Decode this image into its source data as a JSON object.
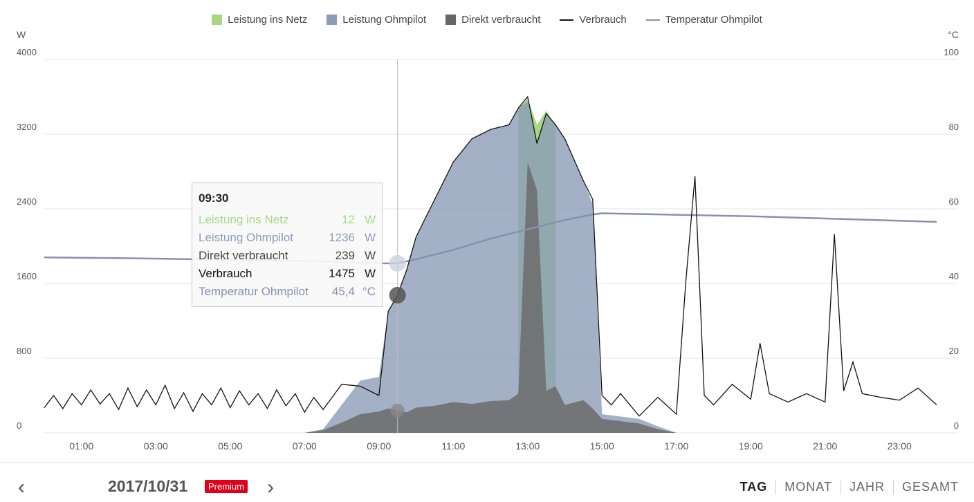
{
  "legend": [
    {
      "label": "Leistung ins Netz",
      "color": "#a6d785",
      "kind": "area"
    },
    {
      "label": "Leistung Ohmpilot",
      "color": "#8c9cb8",
      "kind": "area"
    },
    {
      "label": "Direkt verbraucht",
      "color": "#666666",
      "kind": "area"
    },
    {
      "label": "Verbrauch",
      "color": "#111111",
      "kind": "line"
    },
    {
      "label": "Temperatur Ohmpilot",
      "color": "#8890b0",
      "kind": "line"
    }
  ],
  "units": {
    "left": "W",
    "right": "°C"
  },
  "chart_data": {
    "type": "area",
    "yleft": {
      "label": "W",
      "ticks": [
        0,
        800,
        1600,
        2400,
        3200,
        4000
      ],
      "range": [
        0,
        4000
      ]
    },
    "yright": {
      "label": "°C",
      "ticks": [
        0,
        20,
        40,
        60,
        80,
        100
      ],
      "range": [
        0,
        100
      ]
    },
    "xrange": [
      0,
      24
    ],
    "xticks": [
      "01:00",
      "03:00",
      "05:00",
      "07:00",
      "09:00",
      "11:00",
      "13:00",
      "15:00",
      "17:00",
      "19:00",
      "21:00",
      "23:00"
    ],
    "grid": true,
    "legend_position": "top",
    "series": [
      {
        "name": "Direkt verbraucht",
        "unit": "W",
        "points": [
          [
            0,
            0
          ],
          [
            7,
            0
          ],
          [
            7.5,
            30
          ],
          [
            8,
            110
          ],
          [
            8.5,
            200
          ],
          [
            9,
            230
          ],
          [
            9.25,
            260
          ],
          [
            9.5,
            239
          ],
          [
            9.75,
            220
          ],
          [
            10,
            270
          ],
          [
            10.5,
            290
          ],
          [
            11,
            330
          ],
          [
            11.5,
            310
          ],
          [
            12,
            340
          ],
          [
            12.5,
            350
          ],
          [
            12.75,
            420
          ],
          [
            13,
            2900
          ],
          [
            13.25,
            2600
          ],
          [
            13.5,
            450
          ],
          [
            13.75,
            500
          ],
          [
            14,
            300
          ],
          [
            14.5,
            350
          ],
          [
            14.75,
            260
          ],
          [
            15,
            150
          ],
          [
            16,
            100
          ],
          [
            16.5,
            40
          ],
          [
            17,
            0
          ],
          [
            24,
            0
          ]
        ]
      },
      {
        "name": "Leistung Ohmpilot",
        "unit": "W",
        "points": [
          [
            0,
            0
          ],
          [
            7,
            0
          ],
          [
            7.5,
            40
          ],
          [
            8,
            300
          ],
          [
            8.5,
            560
          ],
          [
            9,
            600
          ],
          [
            9.25,
            1300
          ],
          [
            9.5,
            1475
          ],
          [
            9.75,
            1750
          ],
          [
            10,
            2100
          ],
          [
            10.5,
            2500
          ],
          [
            11,
            2900
          ],
          [
            11.5,
            3150
          ],
          [
            12,
            3250
          ],
          [
            12.5,
            3300
          ],
          [
            12.75,
            3480
          ],
          [
            13,
            3550
          ],
          [
            13.25,
            3100
          ],
          [
            13.5,
            3400
          ],
          [
            13.75,
            3300
          ],
          [
            14,
            3150
          ],
          [
            14.5,
            2700
          ],
          [
            14.75,
            2450
          ],
          [
            15,
            200
          ],
          [
            16,
            150
          ],
          [
            16.5,
            70
          ],
          [
            17,
            0
          ],
          [
            24,
            0
          ]
        ]
      },
      {
        "name": "Leistung ins Netz",
        "unit": "W",
        "points": [
          [
            12.75,
            3480
          ],
          [
            13,
            3580
          ],
          [
            13.25,
            3300
          ],
          [
            13.5,
            3450
          ],
          [
            13.75,
            3300
          ]
        ]
      },
      {
        "name": "Verbrauch",
        "unit": "W",
        "points": [
          [
            0,
            270
          ],
          [
            0.25,
            400
          ],
          [
            0.5,
            260
          ],
          [
            0.75,
            420
          ],
          [
            1,
            300
          ],
          [
            1.25,
            460
          ],
          [
            1.5,
            310
          ],
          [
            1.75,
            420
          ],
          [
            2,
            250
          ],
          [
            2.25,
            480
          ],
          [
            2.5,
            280
          ],
          [
            2.75,
            460
          ],
          [
            3,
            300
          ],
          [
            3.25,
            510
          ],
          [
            3.5,
            260
          ],
          [
            3.75,
            430
          ],
          [
            4,
            230
          ],
          [
            4.25,
            420
          ],
          [
            4.5,
            300
          ],
          [
            4.75,
            480
          ],
          [
            5,
            270
          ],
          [
            5.25,
            450
          ],
          [
            5.5,
            300
          ],
          [
            5.75,
            420
          ],
          [
            6,
            260
          ],
          [
            6.25,
            460
          ],
          [
            6.5,
            290
          ],
          [
            6.75,
            420
          ],
          [
            7,
            220
          ],
          [
            7.25,
            380
          ],
          [
            7.5,
            250
          ],
          [
            8,
            520
          ],
          [
            8.5,
            500
          ],
          [
            9,
            400
          ],
          [
            9.25,
            1300
          ],
          [
            9.5,
            1475
          ],
          [
            9.75,
            1750
          ],
          [
            10,
            2100
          ],
          [
            10.5,
            2500
          ],
          [
            11,
            2900
          ],
          [
            11.5,
            3150
          ],
          [
            12,
            3250
          ],
          [
            12.5,
            3300
          ],
          [
            12.75,
            3480
          ],
          [
            13,
            3600
          ],
          [
            13.25,
            3100
          ],
          [
            13.5,
            3420
          ],
          [
            13.75,
            3300
          ],
          [
            14,
            3150
          ],
          [
            14.5,
            2700
          ],
          [
            14.75,
            2500
          ],
          [
            15,
            400
          ],
          [
            15.25,
            300
          ],
          [
            15.5,
            420
          ],
          [
            16,
            180
          ],
          [
            16.5,
            380
          ],
          [
            17,
            200
          ],
          [
            17.25,
            1600
          ],
          [
            17.5,
            2750
          ],
          [
            17.75,
            400
          ],
          [
            18,
            300
          ],
          [
            18.5,
            520
          ],
          [
            19,
            360
          ],
          [
            19.25,
            960
          ],
          [
            19.5,
            420
          ],
          [
            20,
            330
          ],
          [
            20.5,
            420
          ],
          [
            21,
            330
          ],
          [
            21.25,
            2130
          ],
          [
            21.5,
            450
          ],
          [
            21.75,
            760
          ],
          [
            22,
            420
          ],
          [
            22.5,
            380
          ],
          [
            23,
            350
          ],
          [
            23.5,
            480
          ],
          [
            24,
            300
          ]
        ]
      },
      {
        "name": "Temperatur Ohmpilot",
        "unit": "°C",
        "points": [
          [
            0,
            47
          ],
          [
            2,
            46.8
          ],
          [
            4,
            46.5
          ],
          [
            6,
            46.2
          ],
          [
            8,
            45.8
          ],
          [
            9,
            45.4
          ],
          [
            9.5,
            45.4
          ],
          [
            10,
            46.5
          ],
          [
            11,
            49
          ],
          [
            12,
            52
          ],
          [
            13,
            54.5
          ],
          [
            14,
            57
          ],
          [
            14.75,
            58.5
          ],
          [
            15,
            58.8
          ],
          [
            16,
            58.6
          ],
          [
            17,
            58.4
          ],
          [
            18,
            58.2
          ],
          [
            19,
            58
          ],
          [
            20,
            57.7
          ],
          [
            21,
            57.4
          ],
          [
            22,
            57.1
          ],
          [
            23,
            56.8
          ],
          [
            24,
            56.5
          ]
        ]
      }
    ]
  },
  "tooltip": {
    "time": "09:30",
    "rows": [
      {
        "label": "Leistung ins Netz",
        "value": "12",
        "unit": "W",
        "color": "#a6d785"
      },
      {
        "label": "Leistung Ohmpilot",
        "value": "1236",
        "unit": "W",
        "color": "#8c9cb8"
      },
      {
        "label": "Direkt verbraucht",
        "value": "239",
        "unit": "W",
        "color": "#444444"
      },
      {
        "label": "Verbrauch",
        "value": "1475",
        "unit": "W",
        "color": "#111111"
      },
      {
        "label": "Temperatur Ohmpilot",
        "value": "45,4",
        "unit": "°C",
        "color": "#8890b0"
      }
    ]
  },
  "footer": {
    "date": "2017/10/31",
    "premium": "Premium",
    "prev_icon": "chevron-left-icon",
    "next_icon": "chevron-right-icon",
    "periods": [
      "TAG",
      "MONAT",
      "JAHR",
      "GESAMT"
    ],
    "active_period": "TAG"
  }
}
